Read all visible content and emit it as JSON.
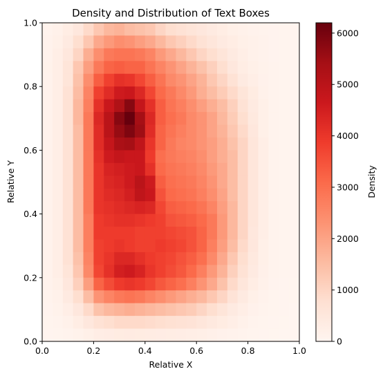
{
  "chart_data": {
    "type": "heatmap",
    "title": "Density and Distribution of Text Boxes",
    "xlabel": "Relative X",
    "ylabel": "Relative Y",
    "xlim": [
      0,
      1
    ],
    "ylim": [
      0,
      1
    ],
    "x_ticks": [
      "0.0",
      "0.2",
      "0.4",
      "0.6",
      "0.8",
      "1.0"
    ],
    "y_ticks": [
      "0.0",
      "0.2",
      "0.4",
      "0.6",
      "0.8",
      "1.0"
    ],
    "grid": false,
    "colormap": "Reds",
    "colorbar": {
      "label": "Density",
      "range": [
        0,
        6200
      ],
      "ticks": [
        "0",
        "1000",
        "2000",
        "3000",
        "4000",
        "5000",
        "6000"
      ]
    },
    "bins": [
      25,
      25
    ],
    "x_columns": [
      0.02,
      0.06,
      0.1,
      0.14,
      0.18,
      0.22,
      0.26,
      0.3,
      0.34,
      0.38,
      0.42,
      0.46,
      0.5,
      0.54,
      0.58,
      0.62,
      0.66,
      0.7,
      0.74,
      0.78,
      0.82,
      0.86,
      0.9,
      0.94,
      0.98
    ],
    "y_rows_top_to_bottom": [
      0.98,
      0.94,
      0.9,
      0.86,
      0.82,
      0.78,
      0.74,
      0.7,
      0.66,
      0.62,
      0.58,
      0.54,
      0.5,
      0.46,
      0.42,
      0.38,
      0.34,
      0.3,
      0.26,
      0.22,
      0.18,
      0.14,
      0.1,
      0.06,
      0.02
    ],
    "density_rows_top_to_bottom": [
      [
        80,
        150,
        300,
        500,
        900,
        1300,
        1600,
        1700,
        1500,
        1400,
        1300,
        1000,
        800,
        700,
        600,
        500,
        400,
        300,
        200,
        150,
        100,
        80,
        60,
        40,
        20
      ],
      [
        100,
        200,
        400,
        800,
        1300,
        1900,
        2200,
        2400,
        2300,
        2100,
        1900,
        1600,
        1300,
        1100,
        900,
        700,
        550,
        400,
        300,
        200,
        150,
        100,
        60,
        40,
        20
      ],
      [
        100,
        250,
        500,
        1000,
        1800,
        2400,
        2800,
        2900,
        2900,
        2800,
        2600,
        2200,
        1900,
        1600,
        1300,
        1000,
        800,
        600,
        400,
        250,
        150,
        100,
        60,
        40,
        20
      ],
      [
        120,
        250,
        600,
        1300,
        2100,
        2800,
        3200,
        3300,
        3200,
        3200,
        2900,
        2600,
        2300,
        2000,
        1700,
        1400,
        1100,
        800,
        500,
        300,
        200,
        120,
        70,
        40,
        20
      ],
      [
        100,
        250,
        600,
        1400,
        2400,
        3300,
        3800,
        4100,
        4000,
        3700,
        3300,
        2900,
        2500,
        2300,
        2000,
        1700,
        1300,
        1000,
        700,
        400,
        250,
        130,
        70,
        40,
        20
      ],
      [
        100,
        250,
        700,
        1500,
        2600,
        3800,
        4200,
        4600,
        4700,
        4300,
        3700,
        3100,
        2800,
        2500,
        2200,
        1800,
        1500,
        1200,
        900,
        600,
        350,
        150,
        70,
        40,
        20
      ],
      [
        100,
        250,
        700,
        1600,
        2700,
        4100,
        4700,
        5200,
        5800,
        4800,
        4100,
        3300,
        2900,
        2700,
        2400,
        2100,
        1800,
        1500,
        1100,
        700,
        400,
        200,
        80,
        40,
        20
      ],
      [
        100,
        250,
        700,
        1600,
        2800,
        4300,
        5000,
        5800,
        6200,
        5400,
        4300,
        3300,
        3000,
        2800,
        2500,
        2300,
        2000,
        1600,
        1200,
        800,
        450,
        200,
        80,
        40,
        20
      ],
      [
        100,
        250,
        700,
        1500,
        2800,
        4200,
        5000,
        5600,
        5900,
        5500,
        4200,
        3200,
        2900,
        2700,
        2500,
        2300,
        2000,
        1700,
        1300,
        900,
        500,
        200,
        80,
        40,
        20
      ],
      [
        100,
        250,
        700,
        1500,
        2800,
        4200,
        4800,
        5300,
        5400,
        4900,
        4000,
        3200,
        2800,
        2600,
        2500,
        2300,
        2100,
        1800,
        1400,
        1000,
        550,
        250,
        80,
        40,
        20
      ],
      [
        100,
        250,
        700,
        1500,
        2800,
        4100,
        4600,
        4800,
        4700,
        4700,
        3900,
        3000,
        2800,
        2700,
        2600,
        2400,
        2100,
        1800,
        1500,
        1000,
        550,
        250,
        80,
        40,
        20
      ],
      [
        100,
        250,
        700,
        1500,
        2800,
        4000,
        4400,
        4500,
        4600,
        4700,
        4100,
        3100,
        2900,
        2800,
        2700,
        2500,
        2200,
        1900,
        1500,
        1000,
        550,
        250,
        80,
        40,
        20
      ],
      [
        100,
        250,
        700,
        1500,
        2800,
        4000,
        4300,
        4400,
        4600,
        5000,
        4600,
        3300,
        3000,
        2900,
        2800,
        2600,
        2300,
        1900,
        1500,
        1000,
        550,
        250,
        80,
        40,
        20
      ],
      [
        100,
        250,
        700,
        1500,
        2800,
        4000,
        4200,
        4300,
        4500,
        4900,
        4700,
        3500,
        3100,
        3000,
        2900,
        2700,
        2400,
        2000,
        1500,
        1000,
        550,
        250,
        80,
        40,
        20
      ],
      [
        100,
        250,
        700,
        1500,
        2800,
        4000,
        4100,
        4200,
        4300,
        4400,
        4300,
        3700,
        3300,
        3200,
        3100,
        2900,
        2600,
        2100,
        1600,
        1000,
        550,
        250,
        80,
        40,
        20
      ],
      [
        100,
        250,
        700,
        1500,
        2700,
        3900,
        4000,
        4100,
        4100,
        4000,
        3900,
        3800,
        3500,
        3400,
        3300,
        3100,
        2800,
        2200,
        1600,
        1000,
        550,
        250,
        80,
        40,
        20
      ],
      [
        100,
        250,
        700,
        1500,
        2700,
        3900,
        3900,
        3900,
        3900,
        3800,
        3800,
        3800,
        3700,
        3600,
        3500,
        3200,
        2800,
        2200,
        1600,
        1000,
        500,
        250,
        80,
        40,
        20
      ],
      [
        100,
        250,
        700,
        1500,
        2700,
        3800,
        3900,
        4000,
        3900,
        3800,
        3800,
        3900,
        3800,
        3700,
        3500,
        3200,
        2700,
        2100,
        1500,
        900,
        500,
        200,
        80,
        40,
        20
      ],
      [
        100,
        250,
        700,
        1400,
        2600,
        3800,
        4000,
        4300,
        4300,
        4100,
        3900,
        3800,
        3700,
        3500,
        3300,
        3000,
        2500,
        1900,
        1300,
        800,
        450,
        200,
        80,
        40,
        20
      ],
      [
        100,
        250,
        600,
        1300,
        2500,
        3700,
        4100,
        4500,
        4600,
        4400,
        4000,
        3800,
        3600,
        3400,
        3100,
        2700,
        2200,
        1700,
        1100,
        700,
        400,
        180,
        70,
        40,
        20
      ],
      [
        100,
        200,
        500,
        1100,
        2100,
        3200,
        3600,
        3900,
        4000,
        3900,
        3700,
        3400,
        3200,
        3000,
        2700,
        2300,
        1900,
        1400,
        900,
        550,
        300,
        150,
        60,
        30,
        15
      ],
      [
        80,
        150,
        400,
        800,
        1500,
        2300,
        2600,
        2800,
        2900,
        2800,
        2600,
        2400,
        2200,
        2000,
        1800,
        1600,
        1300,
        1000,
        650,
        400,
        200,
        100,
        50,
        30,
        15
      ],
      [
        60,
        120,
        250,
        500,
        900,
        1400,
        1600,
        1700,
        1800,
        1700,
        1600,
        1500,
        1400,
        1300,
        1200,
        1000,
        800,
        600,
        400,
        250,
        130,
        70,
        40,
        20,
        10
      ],
      [
        40,
        80,
        150,
        300,
        500,
        700,
        800,
        900,
        900,
        900,
        850,
        800,
        750,
        700,
        650,
        550,
        450,
        350,
        250,
        150,
        90,
        50,
        30,
        15,
        10
      ],
      [
        20,
        40,
        70,
        120,
        200,
        280,
        320,
        350,
        360,
        350,
        340,
        320,
        300,
        280,
        250,
        220,
        180,
        140,
        100,
        70,
        40,
        25,
        15,
        10,
        5
      ]
    ]
  }
}
